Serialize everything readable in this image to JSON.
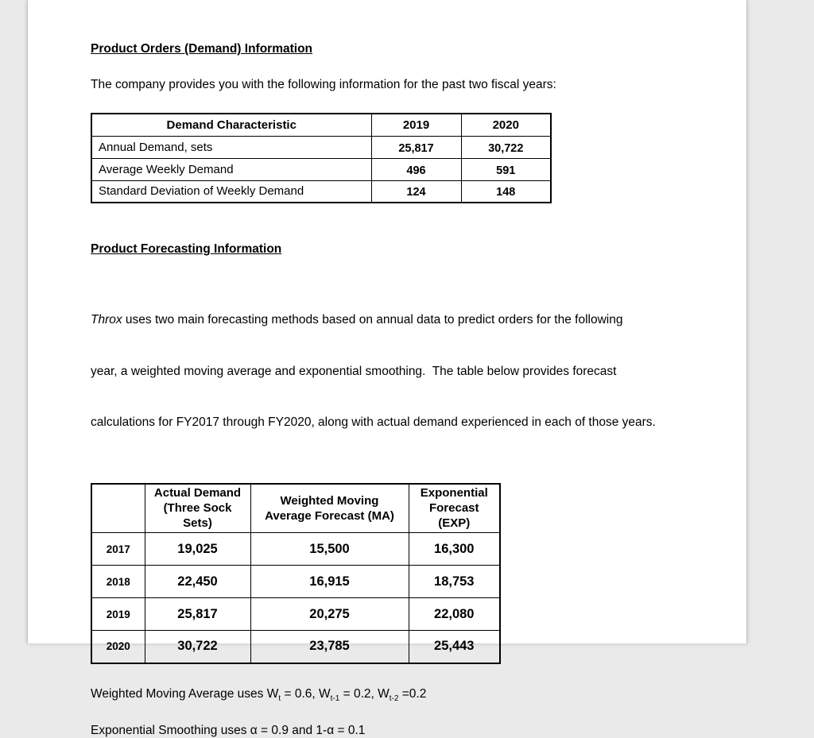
{
  "page": {
    "background_color": "#eaeaea",
    "paper_color": "#ffffff"
  },
  "section1": {
    "heading": "Product Orders (Demand) Information",
    "intro": "The company provides you with the following information for the past two fiscal years:"
  },
  "demand_table": {
    "headers": [
      "Demand Characteristic",
      "2019",
      "2020"
    ],
    "rows": [
      {
        "label": "Annual Demand, sets",
        "y2019": "25,817",
        "y2020": "30,722"
      },
      {
        "label": "Average Weekly Demand",
        "y2019": "496",
        "y2020": "591"
      },
      {
        "label": "Standard Deviation of Weekly Demand",
        "y2019": "124",
        "y2020": "148"
      }
    ]
  },
  "section2": {
    "heading": "Product Forecasting Information",
    "lead_italic": "Throx",
    "line1": " uses two main forecasting methods based on annual data to predict orders for the following",
    "line2": "year, a weighted moving average and exponential smoothing.  The table below provides forecast",
    "line3": "calculations for FY2017 through FY2020, along with actual demand experienced in each of those years."
  },
  "forecast_table": {
    "col_headers": {
      "year": "",
      "actual": [
        "Actual Demand",
        "(Three Sock",
        "Sets)"
      ],
      "ma": [
        "Weighted Moving",
        "Average Forecast (MA)"
      ],
      "exp": [
        "Exponential",
        "Forecast",
        "(EXP)"
      ]
    },
    "rows": [
      {
        "year": "2017",
        "actual": "19,025",
        "ma": "15,500",
        "exp": "16,300"
      },
      {
        "year": "2018",
        "actual": "22,450",
        "ma": "16,915",
        "exp": "18,753"
      },
      {
        "year": "2019",
        "actual": "25,817",
        "ma": "20,275",
        "exp": "22,080"
      },
      {
        "year": "2020",
        "actual": "30,722",
        "ma": "23,785",
        "exp": "25,443"
      }
    ]
  },
  "notes": {
    "wma": {
      "prefix": "Weighted Moving Average uses W",
      "sub1": "t",
      "mid1": " = 0.6, W",
      "sub2": "t-1",
      "mid2": " = 0.2, W",
      "sub3": "t-2",
      "suffix": " =0.2"
    },
    "exp": "Exponential Smoothing uses α = 0.9 and 1-α = 0.1"
  }
}
